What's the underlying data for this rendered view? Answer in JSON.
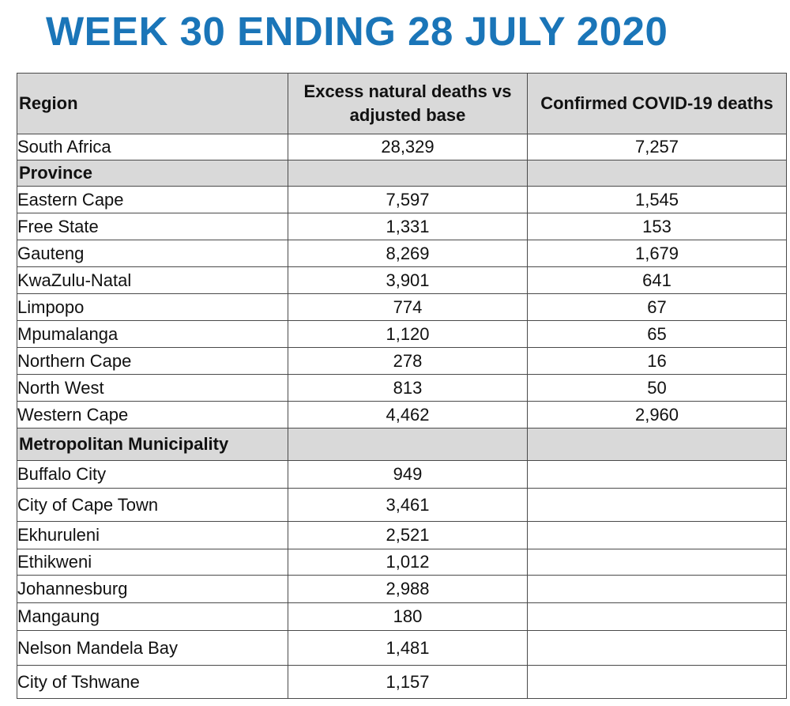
{
  "title": "WEEK 30 ENDING 28 JULY 2020",
  "table": {
    "headers": [
      "Region",
      "Excess natural deaths vs adjusted base",
      "Confirmed COVID-19 deaths"
    ],
    "national": {
      "name": "South Africa",
      "excess": "28,329",
      "confirmed": "7,257"
    },
    "province_label": "Province",
    "provinces": [
      {
        "name": "Eastern Cape",
        "excess": "7,597",
        "confirmed": "1,545"
      },
      {
        "name": "Free State",
        "excess": "1,331",
        "confirmed": "153"
      },
      {
        "name": "Gauteng",
        "excess": "8,269",
        "confirmed": "1,679"
      },
      {
        "name": "KwaZulu-Natal",
        "excess": "3,901",
        "confirmed": "641"
      },
      {
        "name": "Limpopo",
        "excess": "774",
        "confirmed": "67"
      },
      {
        "name": "Mpumalanga",
        "excess": "1,120",
        "confirmed": "65"
      },
      {
        "name": "Northern Cape",
        "excess": "278",
        "confirmed": "16"
      },
      {
        "name": "North West",
        "excess": "813",
        "confirmed": "50"
      },
      {
        "name": "Western Cape",
        "excess": "4,462",
        "confirmed": "2,960"
      }
    ],
    "metro_label": "Metropolitan Municipality",
    "metros": [
      {
        "name": "Buffalo City",
        "excess": "949",
        "confirmed": ""
      },
      {
        "name": "City of Cape Town",
        "excess": "3,461",
        "confirmed": ""
      },
      {
        "name": "Ekhuruleni",
        "excess": "2,521",
        "confirmed": ""
      },
      {
        "name": "Ethikweni",
        "excess": "1,012",
        "confirmed": ""
      },
      {
        "name": "Johannesburg",
        "excess": "2,988",
        "confirmed": ""
      },
      {
        "name": "Mangaung",
        "excess": "180",
        "confirmed": ""
      },
      {
        "name": "Nelson Mandela Bay",
        "excess": "1,481",
        "confirmed": ""
      },
      {
        "name": "City of Tshwane",
        "excess": "1,157",
        "confirmed": ""
      }
    ]
  }
}
